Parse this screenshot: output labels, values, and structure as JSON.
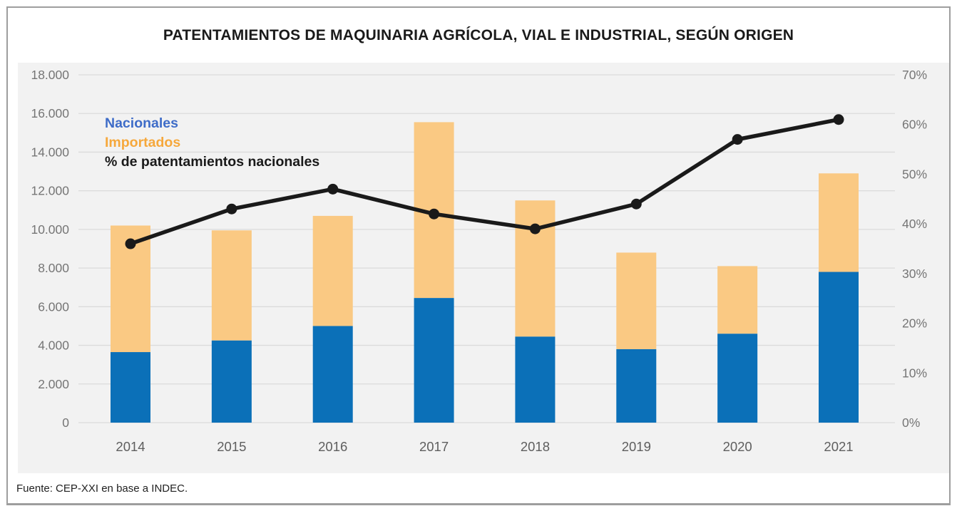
{
  "title": "PATENTAMIENTOS DE MAQUINARIA AGRÍCOLA, VIAL E INDUSTRIAL, SEGÚN ORIGEN",
  "source": "Fuente: CEP-XXI en base a INDEC.",
  "legend": {
    "nacionales": "Nacionales",
    "importados": "Importados",
    "linea": "% de patentamientos nacionales"
  },
  "colors": {
    "bar_nacionales": "#0B70B8",
    "bar_importados": "#FAC983",
    "line": "#1A1A1A",
    "legend_nacionales": "#3E6CC8",
    "legend_importados": "#F6A83C",
    "legend_line": "#1A1A1A",
    "panel_background": "#F2F2F2",
    "gridline": "#DBDBDB",
    "tick_text": "#757575",
    "frame_border": "#9E9E9E"
  },
  "chart_data": {
    "type": "bar",
    "subtype": "stacked-bars-with-line-overlay",
    "title": "PATENTAMIENTOS DE MAQUINARIA AGRÍCOLA, VIAL E INDUSTRIAL, SEGÚN ORIGEN",
    "categories": [
      "2014",
      "2015",
      "2016",
      "2017",
      "2018",
      "2019",
      "2020",
      "2021"
    ],
    "series": [
      {
        "name": "Nacionales",
        "type": "bar",
        "stack": true,
        "axis": "left",
        "color": "#0B70B8",
        "values": [
          3650,
          4250,
          5000,
          6450,
          4450,
          3800,
          4600,
          7800
        ]
      },
      {
        "name": "Importados",
        "type": "bar",
        "stack": true,
        "axis": "left",
        "color": "#FAC983",
        "values": [
          6550,
          5700,
          5700,
          9100,
          7050,
          5000,
          3500,
          5100
        ]
      },
      {
        "name": "% de patentamientos nacionales",
        "type": "line",
        "axis": "right",
        "color": "#1A1A1A",
        "values": [
          36,
          43,
          47,
          42,
          39,
          44,
          57,
          61
        ]
      }
    ],
    "stacked_totals": [
      10200,
      9950,
      10700,
      15550,
      11500,
      8800,
      8100,
      12900
    ],
    "left_axis": {
      "min": 0,
      "max": 18000,
      "tick_step": 2000,
      "tick_labels": [
        "0",
        "2.000",
        "4.000",
        "6.000",
        "8.000",
        "10.000",
        "12.000",
        "14.000",
        "16.000",
        "18.000"
      ]
    },
    "right_axis": {
      "min": 0,
      "max": 70,
      "tick_step": 10,
      "tick_labels": [
        "0%",
        "10%",
        "20%",
        "30%",
        "40%",
        "50%",
        "60%",
        "70%"
      ]
    },
    "grid": true,
    "legend_position": "inside-top-left",
    "xlabel": "",
    "ylabel_left": "",
    "ylabel_right": ""
  }
}
